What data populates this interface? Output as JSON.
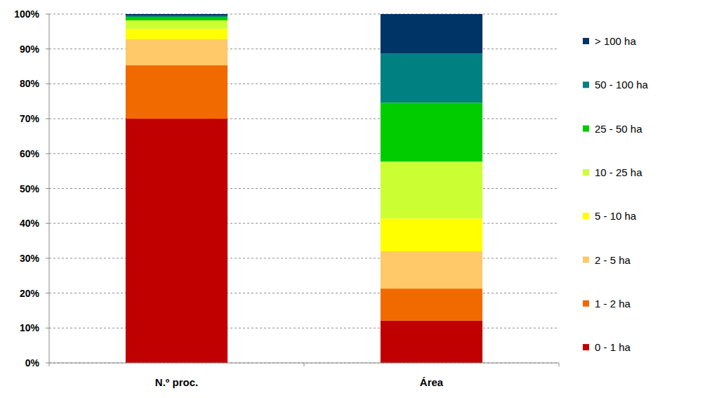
{
  "chart_data": {
    "type": "bar",
    "stacked": true,
    "grid": true,
    "legend": "right",
    "categories": [
      "N.º proc.",
      "Área"
    ],
    "ylim": [
      0,
      100
    ],
    "yticks": [
      {
        "value": 0,
        "label": "0%"
      },
      {
        "value": 10,
        "label": "10%"
      },
      {
        "value": 20,
        "label": "20%"
      },
      {
        "value": 30,
        "label": "30%"
      },
      {
        "value": 40,
        "label": "40%"
      },
      {
        "value": 50,
        "label": "50%"
      },
      {
        "value": 60,
        "label": "60%"
      },
      {
        "value": 70,
        "label": "70%"
      },
      {
        "value": 80,
        "label": "80%"
      },
      {
        "value": 90,
        "label": "90%"
      },
      {
        "value": 100,
        "label": "100%"
      }
    ],
    "series": [
      {
        "name": "0 - 1 ha",
        "color": "#c00000",
        "values": [
          70.0,
          12.1
        ]
      },
      {
        "name": "1 - 2 ha",
        "color": "#f06a00",
        "values": [
          15.3,
          9.2
        ]
      },
      {
        "name": "2 - 5 ha",
        "color": "#ffc869",
        "values": [
          7.5,
          10.7
        ]
      },
      {
        "name": "5 - 10 ha",
        "color": "#ffff00",
        "values": [
          3.0,
          9.4
        ]
      },
      {
        "name": "10 - 25 ha",
        "color": "#ccff33",
        "values": [
          2.4,
          16.3
        ]
      },
      {
        "name": "25 - 50 ha",
        "color": "#00cc00",
        "values": [
          1.0,
          16.9
        ]
      },
      {
        "name": "50 - 100 ha",
        "color": "#008080",
        "values": [
          0.4,
          14.1
        ]
      },
      {
        "name": "> 100 ha",
        "color": "#003366",
        "values": [
          0.4,
          11.3
        ]
      }
    ]
  }
}
